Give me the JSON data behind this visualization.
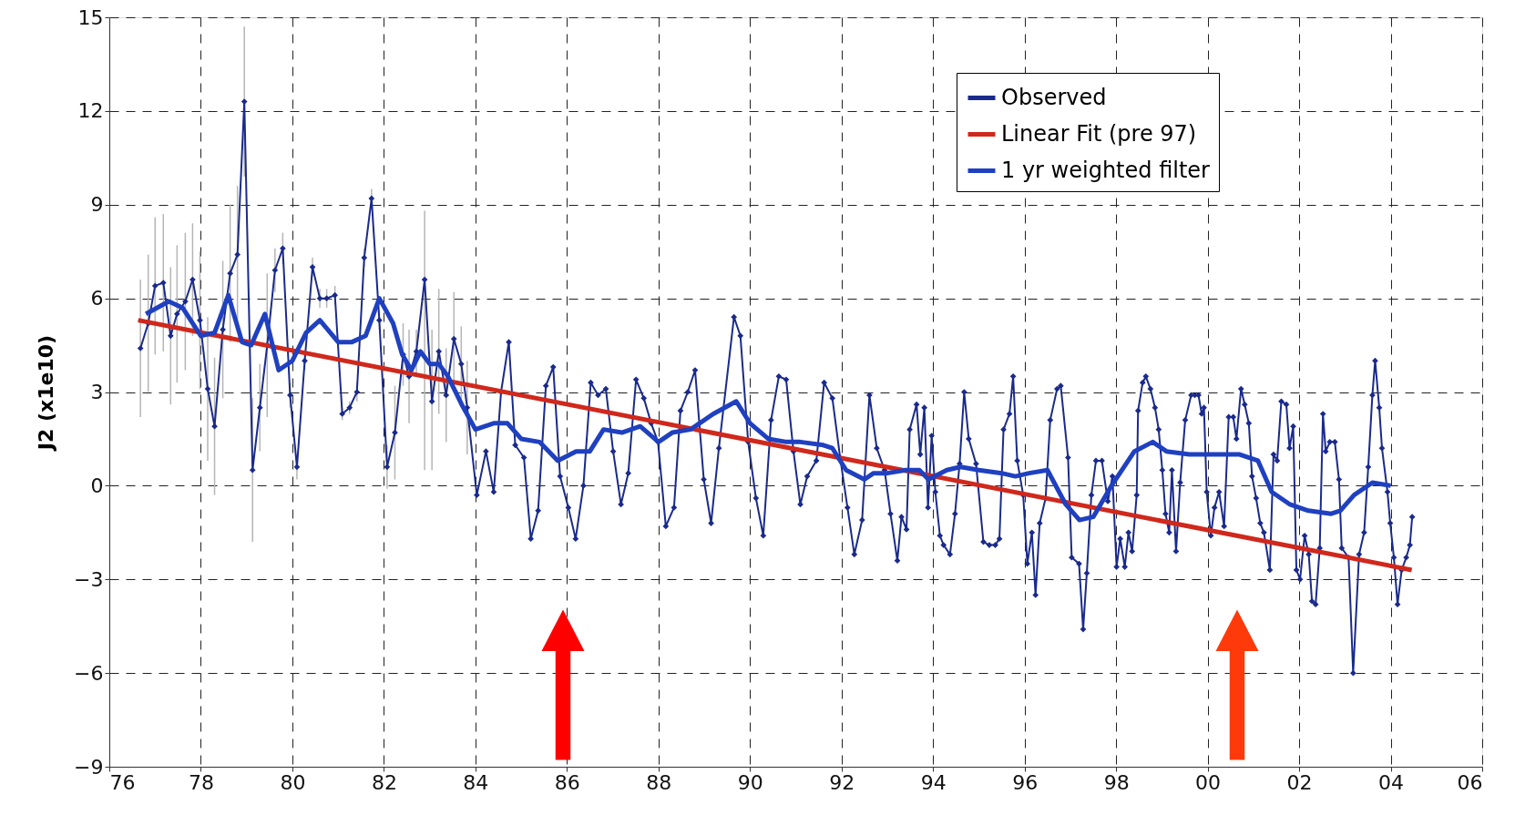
{
  "chart_data": {
    "type": "line",
    "ylabel": "J2 (x1e10)",
    "xlim": [
      1976,
      2006
    ],
    "ylim": [
      -9,
      15
    ],
    "xticks": [
      {
        "value": 1976,
        "label": "76"
      },
      {
        "value": 1978,
        "label": "78"
      },
      {
        "value": 1980,
        "label": "80"
      },
      {
        "value": 1982,
        "label": "82"
      },
      {
        "value": 1984,
        "label": "84"
      },
      {
        "value": 1986,
        "label": "86"
      },
      {
        "value": 1988,
        "label": "88"
      },
      {
        "value": 1990,
        "label": "90"
      },
      {
        "value": 1992,
        "label": "92"
      },
      {
        "value": 1994,
        "label": "94"
      },
      {
        "value": 1996,
        "label": "96"
      },
      {
        "value": 1998,
        "label": "98"
      },
      {
        "value": 2000,
        "label": "00"
      },
      {
        "value": 2002,
        "label": "02"
      },
      {
        "value": 2004,
        "label": "04"
      },
      {
        "value": 2006,
        "label": "06"
      }
    ],
    "yticks": [
      -9,
      -6,
      -3,
      0,
      3,
      6,
      9,
      12,
      15
    ],
    "grid": true,
    "legend": "top right",
    "series": [
      {
        "name": "Observed",
        "color": "#1a2a8c",
        "marker": "diamond",
        "x": [
          1976.68,
          1976.85,
          1977.0,
          1977.18,
          1977.34,
          1977.48,
          1977.66,
          1977.82,
          1977.98,
          1978.15,
          1978.3,
          1978.48,
          1978.64,
          1978.8,
          1978.95,
          1979.13,
          1979.29,
          1979.45,
          1979.62,
          1979.79,
          1979.95,
          1980.1,
          1980.27,
          1980.44,
          1980.6,
          1980.75,
          1980.93,
          1981.09,
          1981.25,
          1981.41,
          1981.57,
          1981.73,
          1981.9,
          1982.07,
          1982.24,
          1982.42,
          1982.55,
          1982.71,
          1982.89,
          1983.05,
          1983.2,
          1983.36,
          1983.53,
          1983.69,
          1983.82,
          1984.03,
          1984.23,
          1984.4,
          1984.56,
          1984.73,
          1984.87,
          1985.06,
          1985.21,
          1985.37,
          1985.54,
          1985.7,
          1985.85,
          1986.03,
          1986.19,
          1986.36,
          1986.52,
          1986.68,
          1986.85,
          1987.01,
          1987.18,
          1987.34,
          1987.51,
          1987.68,
          1987.84,
          1987.99,
          1988.16,
          1988.34,
          1988.48,
          1988.64,
          1988.8,
          1988.99,
          1989.15,
          1989.32,
          1989.65,
          1989.79,
          1989.96,
          1990.13,
          1990.29,
          1990.46,
          1990.63,
          1990.79,
          1990.95,
          1991.1,
          1991.25,
          1991.45,
          1991.62,
          1991.8,
          1991.97,
          1992.13,
          1992.28,
          1992.45,
          1992.61,
          1992.77,
          1992.94,
          1993.07,
          1993.22,
          1993.31,
          1993.42,
          1993.49,
          1993.64,
          1993.72,
          1993.81,
          1993.89,
          1993.97,
          1994.05,
          1994.15,
          1994.23,
          1994.37,
          1994.48,
          1994.58,
          1994.68,
          1994.78,
          1994.94,
          1995.1,
          1995.23,
          1995.36,
          1995.45,
          1995.54,
          1995.67,
          1995.75,
          1995.84,
          1995.97,
          1996.06,
          1996.16,
          1996.24,
          1996.33,
          1996.46,
          1996.56,
          1996.71,
          1996.79,
          1996.95,
          1997.03,
          1997.19,
          1997.28,
          1997.36,
          1997.46,
          1997.56,
          1997.69,
          1997.82,
          1997.92,
          1998.01,
          1998.09,
          1998.19,
          1998.27,
          1998.35,
          1998.45,
          1998.48,
          1998.58,
          1998.65,
          1998.75,
          1998.85,
          1998.93,
          1999.01,
          1999.08,
          1999.16,
          1999.22,
          1999.31,
          1999.4,
          1999.51,
          1999.64,
          1999.72,
          1999.8,
          1999.87,
          1999.92,
          1999.98,
          2000.07,
          2000.15,
          2000.25,
          2000.36,
          2000.46,
          2000.56,
          2000.63,
          2000.73,
          2000.81,
          2000.9,
          2000.97,
          2001.06,
          2001.15,
          2001.23,
          2001.36,
          2001.44,
          2001.52,
          2001.61,
          2001.72,
          2001.79,
          2001.87,
          2001.94,
          2002.02,
          2002.12,
          2002.21,
          2002.28,
          2002.36,
          2002.45,
          2002.52,
          2002.58,
          2002.67,
          2002.78,
          2002.87,
          2002.93,
          2003.08,
          2003.18,
          2003.31,
          2003.42,
          2003.51,
          2003.6,
          2003.66,
          2003.75,
          2003.81,
          2003.93,
          2003.99,
          2004.07,
          2004.15,
          2004.24,
          2004.34,
          2004.42,
          2004.47
        ],
        "values": [
          4.4,
          5.2,
          6.4,
          6.5,
          4.8,
          5.5,
          5.9,
          6.6,
          5.3,
          3.1,
          1.9,
          5.0,
          6.8,
          7.4,
          12.3,
          0.5,
          2.5,
          4.5,
          6.9,
          7.6,
          2.9,
          0.6,
          4.0,
          7.0,
          6.0,
          6.0,
          6.1,
          2.3,
          2.5,
          3.0,
          7.3,
          9.2,
          5.3,
          0.6,
          1.7,
          4.2,
          3.5,
          4.3,
          6.6,
          2.7,
          4.3,
          2.9,
          4.7,
          3.9,
          2.5,
          -0.3,
          1.1,
          -0.2,
          3.0,
          4.6,
          1.3,
          0.9,
          -1.7,
          -0.8,
          3.2,
          3.8,
          0.3,
          -0.7,
          -1.7,
          0.0,
          3.3,
          2.9,
          3.1,
          1.1,
          -0.6,
          0.4,
          3.4,
          2.8,
          2.0,
          1.4,
          -1.3,
          -0.7,
          2.4,
          3.0,
          3.7,
          0.2,
          -1.2,
          1.2,
          5.4,
          4.8,
          1.4,
          -0.4,
          -1.6,
          2.1,
          3.5,
          3.4,
          1.1,
          -0.6,
          0.3,
          0.8,
          3.3,
          2.8,
          0.9,
          -0.7,
          -2.2,
          -1.1,
          2.9,
          1.2,
          0.5,
          -0.9,
          -2.4,
          -1.0,
          -1.4,
          1.8,
          2.6,
          1.0,
          2.5,
          -0.7,
          1.6,
          -0.2,
          -1.6,
          -1.9,
          -2.2,
          -0.9,
          0.7,
          3.0,
          1.5,
          0.7,
          -1.8,
          -1.9,
          -1.9,
          -1.7,
          1.8,
          2.3,
          3.5,
          0.8,
          -0.3,
          -2.5,
          -1.5,
          -3.5,
          -1.2,
          -0.4,
          2.1,
          3.1,
          3.2,
          0.9,
          -2.3,
          -2.5,
          -4.6,
          -2.8,
          -0.3,
          0.8,
          0.8,
          -0.5,
          0.3,
          -2.6,
          -1.7,
          -2.6,
          -1.5,
          -2.1,
          -0.3,
          2.4,
          3.3,
          3.5,
          3.1,
          2.5,
          1.8,
          0.5,
          -0.9,
          -1.5,
          0.5,
          -2.1,
          0.1,
          2.1,
          2.9,
          2.9,
          2.9,
          2.3,
          2.5,
          -0.2,
          -1.6,
          -0.7,
          -0.2,
          -1.3,
          2.2,
          2.2,
          1.5,
          3.1,
          2.6,
          2.0,
          0.3,
          -0.4,
          -1.2,
          -1.5,
          -2.7,
          1.0,
          0.8,
          2.7,
          2.6,
          1.2,
          1.9,
          -2.7,
          -3.0,
          -1.6,
          -2.2,
          -3.7,
          -3.8,
          -2.0,
          2.3,
          1.1,
          1.4,
          1.4,
          0.2,
          -2.0,
          -2.3,
          -6.0,
          -2.2,
          -1.5,
          0.6,
          2.9,
          4.0,
          2.5,
          1.2,
          -0.2,
          -1.2,
          -2.3,
          -3.8,
          -2.7,
          -2.3,
          -1.9,
          -1.0
        ],
        "errors": [
          2.2,
          2.2,
          2.2,
          2.2,
          2.2,
          2.2,
          2.2,
          1.8,
          2.2,
          2.3,
          2.2,
          2.2,
          2.2,
          2.2,
          2.4,
          2.3,
          1.4,
          2.3,
          0.7,
          0.5,
          0.4,
          0.4,
          0.3,
          0.3,
          0.3,
          0.3,
          0.3,
          0.2,
          0.2,
          0.3,
          0.3,
          0.3,
          0.3,
          0.7,
          1.5,
          1.0,
          1.5,
          0.7,
          [
            0.5,
            8.8
          ],
          [
            0.5,
            5.0
          ],
          2.0,
          1.5,
          1.5,
          1.2,
          1.5,
          null,
          null,
          null,
          null,
          null,
          null,
          null,
          null,
          null,
          null,
          null,
          null,
          null,
          null,
          null,
          null,
          null,
          null,
          null,
          null,
          null,
          null,
          null,
          null,
          null,
          null,
          null,
          null,
          null,
          null,
          null,
          null,
          null,
          null,
          null,
          null,
          null,
          null,
          null,
          null,
          null,
          null,
          null,
          null,
          null,
          null,
          null,
          null,
          null,
          null,
          null,
          null,
          null,
          null,
          null,
          null,
          null,
          null,
          null,
          null,
          null,
          null,
          null,
          null,
          null,
          null,
          null,
          null,
          null,
          null,
          null,
          null,
          null,
          null,
          null,
          null,
          null,
          null,
          null,
          null,
          null,
          null,
          null,
          null,
          null,
          null,
          null,
          null,
          null,
          null,
          null,
          null,
          null,
          null,
          null,
          null,
          null,
          null,
          null,
          null,
          null,
          null,
          null,
          null,
          null,
          null,
          null,
          null,
          null,
          null,
          null,
          null,
          null,
          null,
          null,
          null,
          null,
          null,
          null,
          null,
          null,
          null,
          null,
          null,
          null,
          null,
          null,
          null,
          null,
          null,
          null,
          null,
          null,
          null,
          null,
          null,
          null,
          null,
          null,
          null,
          null,
          null,
          null,
          null,
          null,
          null,
          null,
          null,
          null,
          null,
          null,
          null,
          null,
          null,
          null,
          null,
          null,
          null,
          null,
          null,
          null,
          null,
          null,
          null,
          null,
          null,
          null,
          null,
          null,
          null,
          null,
          null,
          null,
          null,
          null,
          null
        ]
      },
      {
        "name": "Linear Fit (pre 97)",
        "color": "#d0281c",
        "x": [
          1976.63,
          2004.46
        ],
        "values": [
          5.3,
          -2.7
        ]
      },
      {
        "name": "1 yr weighted filter",
        "color": "#1f40c0",
        "x": [
          1976.8,
          1977.3,
          1977.6,
          1978.0,
          1978.3,
          1978.6,
          1978.9,
          1979.1,
          1979.4,
          1979.7,
          1980.0,
          1980.3,
          1980.6,
          1981.0,
          1981.3,
          1981.6,
          1981.9,
          1982.2,
          1982.4,
          1982.6,
          1982.8,
          1983.0,
          1983.2,
          1983.4,
          1983.7,
          1984.0,
          1984.4,
          1984.7,
          1985.0,
          1985.4,
          1985.8,
          1986.2,
          1986.5,
          1986.8,
          1987.2,
          1987.6,
          1988.0,
          1988.3,
          1988.7,
          1989.2,
          1989.7,
          1990.0,
          1990.4,
          1990.8,
          1991.1,
          1991.6,
          1991.8,
          1992.1,
          1992.5,
          1992.7,
          1993.0,
          1993.4,
          1993.7,
          1993.9,
          1994.3,
          1994.6,
          1995.0,
          1995.5,
          1995.8,
          1996.1,
          1996.5,
          1996.9,
          1997.2,
          1997.5,
          1997.9,
          1998.4,
          1998.8,
          1999.1,
          1999.6,
          2000.1,
          2000.7,
          2001.1,
          2001.4,
          2001.8,
          2002.2,
          2002.7,
          2002.9,
          2003.2,
          2003.6,
          2004.0
        ],
        "values": [
          5.5,
          5.9,
          5.7,
          4.8,
          4.9,
          6.1,
          4.6,
          4.5,
          5.5,
          3.7,
          4.0,
          4.9,
          5.3,
          4.6,
          4.6,
          4.8,
          6.0,
          5.2,
          4.2,
          3.7,
          4.3,
          3.9,
          3.9,
          3.5,
          2.6,
          1.8,
          2.0,
          2.0,
          1.5,
          1.4,
          0.8,
          1.1,
          1.1,
          1.8,
          1.7,
          1.9,
          1.4,
          1.7,
          1.8,
          2.3,
          2.7,
          2.0,
          1.5,
          1.4,
          1.4,
          1.3,
          1.2,
          0.5,
          0.2,
          0.4,
          0.4,
          0.5,
          0.5,
          0.2,
          0.5,
          0.6,
          0.5,
          0.4,
          0.3,
          0.4,
          0.5,
          -0.6,
          -1.1,
          -1.0,
          0.0,
          1.1,
          1.4,
          1.1,
          1.0,
          1.0,
          1.0,
          0.8,
          -0.2,
          -0.6,
          -0.8,
          -0.9,
          -0.8,
          -0.3,
          0.1,
          0.0
        ]
      }
    ]
  }
}
